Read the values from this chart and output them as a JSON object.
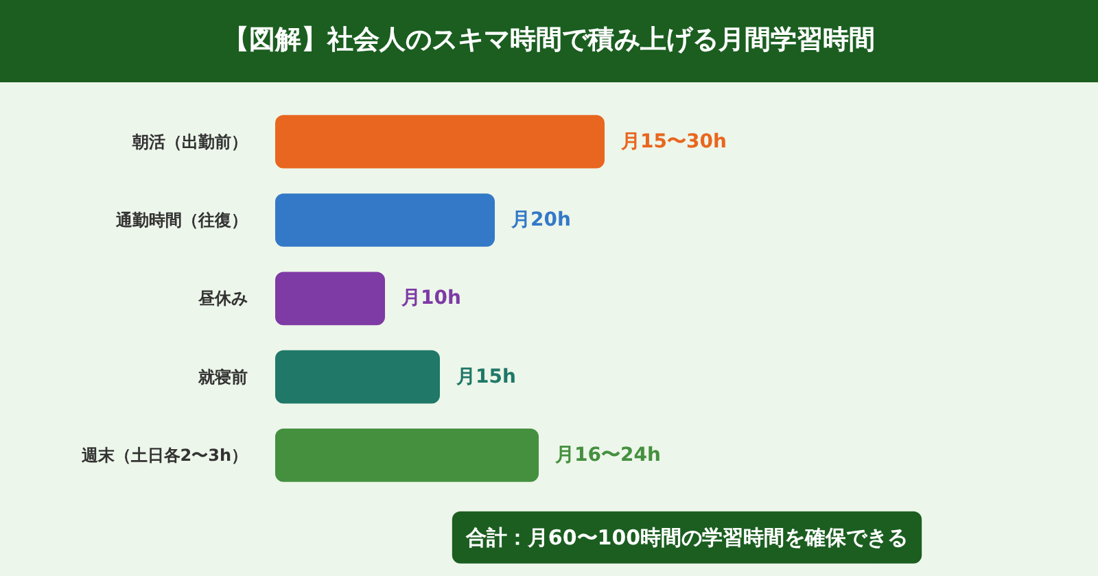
{
  "chart_data": {
    "type": "bar",
    "orientation": "horizontal",
    "title": "【図解】社会人のスキマ時間で積み上げる月間学習時間",
    "categories": [
      "朝活（出勤前）",
      "通勤時間（往復）",
      "昼休み",
      "就寝前",
      "週末（土日各2〜3h）"
    ],
    "values": [
      30,
      20,
      10,
      15,
      24
    ],
    "colors": [
      "#e8661f",
      "#3379c8",
      "#7e3aa5",
      "#1f7868",
      "#44903f"
    ],
    "value_labels": [
      "月15〜30h",
      "月20h",
      "月10h",
      "月15h",
      "月16〜24h"
    ],
    "annotations": [
      "合計：月60〜100時間の学習時間を確保できる"
    ],
    "grid": false,
    "legend": false
  }
}
